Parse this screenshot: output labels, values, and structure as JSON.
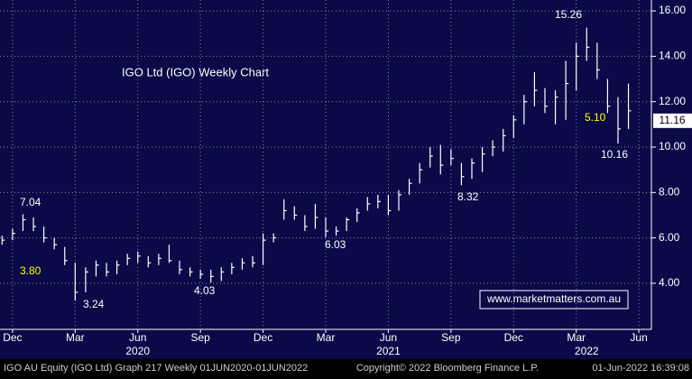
{
  "chart_data": {
    "type": "ohlc",
    "title": "IGO Ltd (IGO) Weekly Chart",
    "color": "#ffffff",
    "background": "#0a0a48",
    "grid": true,
    "x": [
      -0.5,
      0,
      0.5,
      1,
      1.5,
      2,
      2.5,
      3,
      3.5,
      4,
      4.5,
      5,
      5.5,
      6,
      6.5,
      7,
      7.5,
      8,
      8.5,
      9,
      9.5,
      10,
      10.5,
      11,
      11.5,
      12,
      12.5,
      13,
      13.5,
      14,
      14.5,
      15,
      15.5,
      16,
      16.5,
      17,
      17.5,
      18,
      18.5,
      19,
      19.5,
      20,
      20.5,
      21,
      21.5,
      22,
      22.5,
      23,
      23.5,
      24,
      24.5,
      25,
      25.5,
      26,
      26.5,
      27,
      27.5,
      28,
      28.5,
      29,
      29.5
    ],
    "high": [
      6.1,
      6.4,
      7.04,
      6.9,
      6.5,
      6.0,
      5.6,
      4.9,
      4.7,
      5.0,
      4.9,
      5.0,
      5.3,
      5.4,
      5.2,
      5.3,
      5.7,
      5.0,
      4.7,
      4.6,
      4.6,
      4.7,
      4.9,
      5.1,
      5.2,
      6.2,
      6.2,
      7.7,
      7.4,
      7.0,
      7.5,
      6.9,
      6.5,
      6.9,
      7.3,
      7.8,
      7.9,
      7.9,
      8.1,
      8.6,
      9.3,
      10.0,
      10.1,
      9.9,
      9.3,
      9.5,
      10.0,
      10.3,
      10.8,
      11.4,
      12.3,
      13.3,
      12.6,
      12.5,
      13.8,
      14.6,
      15.26,
      14.6,
      13.0,
      12.2,
      12.8
    ],
    "low": [
      5.7,
      5.9,
      6.3,
      6.3,
      5.8,
      5.5,
      4.8,
      3.24,
      3.6,
      4.3,
      4.3,
      4.4,
      4.8,
      4.9,
      4.7,
      4.8,
      4.9,
      4.4,
      4.3,
      4.2,
      4.03,
      4.1,
      4.4,
      4.6,
      4.7,
      4.8,
      5.8,
      6.8,
      6.8,
      6.3,
      6.4,
      6.03,
      6.1,
      6.3,
      6.7,
      7.2,
      7.3,
      7.0,
      7.2,
      7.9,
      8.4,
      9.1,
      8.8,
      9.2,
      8.32,
      8.6,
      8.9,
      9.6,
      9.8,
      10.4,
      11.0,
      11.8,
      11.5,
      11.0,
      11.2,
      12.5,
      13.8,
      13.0,
      11.5,
      10.16,
      10.8
    ],
    "close": [
      5.9,
      6.2,
      6.8,
      6.5,
      6.0,
      5.7,
      5.0,
      3.6,
      4.5,
      4.8,
      4.5,
      4.8,
      5.1,
      5.2,
      4.9,
      5.1,
      5.0,
      4.6,
      4.5,
      4.4,
      4.3,
      4.5,
      4.7,
      4.9,
      4.9,
      5.9,
      6.0,
      7.2,
      7.0,
      6.5,
      6.9,
      6.3,
      6.3,
      6.8,
      7.1,
      7.5,
      7.6,
      7.2,
      7.9,
      8.4,
      9.0,
      9.6,
      9.2,
      9.5,
      8.7,
      9.3,
      9.7,
      10.0,
      10.5,
      11.2,
      12.0,
      12.5,
      11.8,
      12.2,
      12.8,
      14.0,
      14.4,
      13.4,
      11.8,
      10.8,
      11.6
    ],
    "xlim": [
      -0.6,
      30.6
    ],
    "xticks": [
      {
        "value": 0,
        "label": "Dec"
      },
      {
        "value": 3,
        "label": "Mar"
      },
      {
        "value": 6,
        "label": "Jun"
      },
      {
        "value": 9,
        "label": "Sep"
      },
      {
        "value": 12,
        "label": "Dec"
      },
      {
        "value": 15,
        "label": "Mar"
      },
      {
        "value": 18,
        "label": "Jun"
      },
      {
        "value": 21,
        "label": "Sep"
      },
      {
        "value": 24,
        "label": "Dec"
      },
      {
        "value": 27,
        "label": "Mar"
      },
      {
        "value": 30,
        "label": "Jun"
      }
    ],
    "year_labels": [
      {
        "value": 6,
        "label": "2020"
      },
      {
        "value": 18,
        "label": "2021"
      },
      {
        "value": 27.5,
        "label": "2022"
      }
    ],
    "ylim": [
      1.97,
      16.48
    ],
    "yticks": [
      {
        "value": 4,
        "label": "4.00"
      },
      {
        "value": 6,
        "label": "6.00"
      },
      {
        "value": 8,
        "label": "8.00"
      },
      {
        "value": 10,
        "label": "10.00"
      },
      {
        "value": 12,
        "label": "12.00"
      },
      {
        "value": 14,
        "label": "14.00"
      },
      {
        "value": 16,
        "label": "16.00"
      }
    ],
    "last_price": 11.16,
    "annotations": [
      {
        "text": "7.04",
        "color": "#ffffff"
      },
      {
        "text": "3.80",
        "color": "#ffff00"
      },
      {
        "text": "3.24",
        "color": "#ffffff"
      },
      {
        "text": "4.03",
        "color": "#ffffff"
      },
      {
        "text": "6.03",
        "color": "#ffffff"
      },
      {
        "text": "8.32",
        "color": "#ffffff"
      },
      {
        "text": "15.26",
        "color": "#ffffff"
      },
      {
        "text": "5.10",
        "color": "#ffff00"
      },
      {
        "text": "10.16",
        "color": "#ffffff"
      }
    ],
    "watermark": "www.marketmatters.com.au",
    "footer": {
      "left": "IGO AU Equity (IGO Ltd) Graph 217  Weekly 01JUN2020-01JUN2022",
      "middle": "Copyright© 2022 Bloomberg Finance L.P.",
      "right": "01-Jun-2022 16:39:08"
    }
  }
}
